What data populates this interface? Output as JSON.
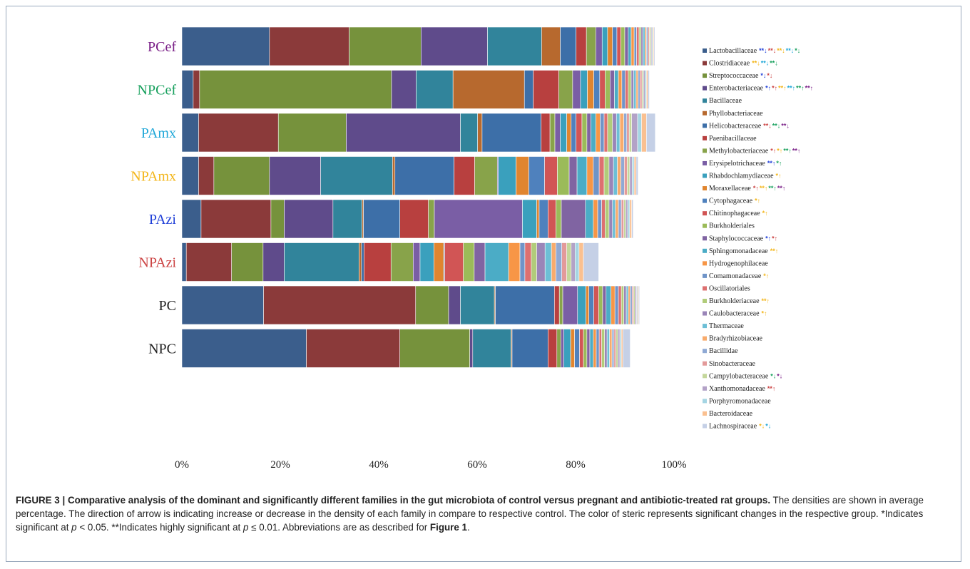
{
  "caption": {
    "part1": "FIGURE 3 | Comparative analysis of the dominant and significantly different families in the gut microbiota of control versus pregnant and antibiotic-treated rat groups.",
    "part2": " The densities are shown in average percentage. The direction of arrow is indicating increase or decrease in the density of each family in compare to respective control. The color of steric represents significant changes in the respective group. *Indicates significant at ",
    "p1": "p",
    "part3": " < 0.05. **Indicates highly significant at ",
    "p2": "p",
    "part4": " ≤ 0.01. Abbreviations are as described for ",
    "figref": "Figure 1",
    "part5": "."
  },
  "chart_data": {
    "type": "bar",
    "orientation": "horizontal",
    "stacked": true,
    "x_ticks": [
      "0%",
      "20%",
      "40%",
      "60%",
      "80%",
      "100%"
    ],
    "xlim": [
      0,
      100
    ],
    "legend_position": "right",
    "groups": [
      {
        "label": "PCef",
        "color": "#7a1f87",
        "values": [
          17.8,
          16.2,
          14.6,
          13.5,
          11.0,
          3.8,
          3.2,
          2.1,
          1.9,
          1.3,
          1.1,
          1.0,
          0.9,
          0.8,
          0.8,
          0.7,
          0.6,
          0.6,
          0.5,
          0.5,
          0.4,
          0.4,
          0.4,
          0.3,
          0.3,
          0.3,
          0.3,
          0.2,
          0.2,
          0.2,
          0.2
        ]
      },
      {
        "label": "NPCef",
        "color": "#17a05d",
        "values": [
          2.3,
          1.3,
          39.0,
          5.0,
          7.5,
          14.5,
          1.8,
          5.2,
          2.8,
          1.6,
          1.4,
          1.3,
          1.2,
          1.1,
          1.0,
          0.9,
          0.8,
          0.7,
          0.7,
          0.6,
          0.6,
          0.5,
          0.5,
          0.4,
          0.4,
          0.4,
          0.3,
          0.3,
          0.3,
          0.3,
          0.3
        ]
      },
      {
        "label": "PAmx",
        "color": "#20a7d8",
        "values": [
          3.4,
          16.2,
          13.8,
          23.2,
          3.5,
          0.9,
          12.0,
          1.8,
          1.0,
          1.1,
          1.3,
          0.9,
          1.0,
          1.2,
          1.0,
          0.8,
          1.0,
          0.9,
          0.8,
          0.7,
          1.0,
          0.8,
          0.7,
          0.8,
          0.6,
          0.5,
          0.5,
          1.2,
          0.8,
          1.0,
          1.8
        ]
      },
      {
        "label": "NPAmx",
        "color": "#f3b61b",
        "values": [
          3.4,
          3.1,
          11.3,
          10.4,
          14.6,
          0.5,
          12.0,
          4.2,
          4.6,
          0.2,
          3.6,
          2.6,
          3.2,
          2.6,
          2.4,
          1.6,
          2.0,
          1.3,
          1.2,
          1.0,
          1.0,
          0.9,
          0.8,
          0.7,
          0.7,
          0.6,
          0.5,
          0.5,
          0.4,
          0.4,
          0.4
        ]
      },
      {
        "label": "PAzi",
        "color": "#1f3fd8",
        "values": [
          3.9,
          14.2,
          2.7,
          9.9,
          5.9,
          0.3,
          7.4,
          5.8,
          1.2,
          17.9,
          2.9,
          0.5,
          1.8,
          1.6,
          1.1,
          4.9,
          1.6,
          0.9,
          0.8,
          0.7,
          0.8,
          0.7,
          0.6,
          0.6,
          0.6,
          0.5,
          0.4,
          0.4,
          0.4,
          0.4,
          0.3
        ]
      },
      {
        "label": "NPAzi",
        "color": "#cc4444",
        "values": [
          0.9,
          9.2,
          6.4,
          4.3,
          15.2,
          0.5,
          0.5,
          5.5,
          4.5,
          1.4,
          2.8,
          2.0,
          0.2,
          3.8,
          2.2,
          2.2,
          4.8,
          2.3,
          1.0,
          1.3,
          1.1,
          1.7,
          1.3,
          0.9,
          1.2,
          1.0,
          0.9,
          0.8,
          0.8,
          0.9,
          3.1
        ]
      },
      {
        "label": "PC",
        "color": "#222222",
        "values": [
          16.6,
          30.9,
          6.7,
          2.4,
          6.9,
          0.2,
          12.0,
          1.0,
          0.7,
          3.0,
          1.7,
          0.6,
          1.0,
          1.0,
          0.8,
          0.7,
          1.0,
          0.8,
          0.7,
          0.6,
          0.5,
          0.5,
          0.4,
          0.4,
          0.4,
          0.3,
          0.3,
          0.3,
          0.2,
          0.2,
          0.2
        ]
      },
      {
        "label": "NPC",
        "color": "#222222",
        "values": [
          25.3,
          19.0,
          14.2,
          0.6,
          7.8,
          0.2,
          7.3,
          1.8,
          0.8,
          0.6,
          1.4,
          0.8,
          1.0,
          0.8,
          0.7,
          0.6,
          0.7,
          0.6,
          0.6,
          0.5,
          0.6,
          0.5,
          0.5,
          0.5,
          0.4,
          0.4,
          0.4,
          0.4,
          0.3,
          0.3,
          1.5
        ]
      }
    ],
    "families": [
      {
        "name": "Lactobacillaceae",
        "color": "#3b5e8c",
        "marks": [
          {
            "t": "**↓",
            "c": "#1f3fd8"
          },
          {
            "t": "**↓",
            "c": "#cc4444"
          },
          {
            "t": "**↓",
            "c": "#f3b61b"
          },
          {
            "t": "**↓",
            "c": "#20a7d8"
          },
          {
            "t": "*↓",
            "c": "#17a05d"
          }
        ]
      },
      {
        "name": "Clostridiaceae",
        "color": "#8b3a3a",
        "marks": [
          {
            "t": "**↓",
            "c": "#f3b61b"
          },
          {
            "t": "**↓",
            "c": "#20a7d8"
          },
          {
            "t": "**↓",
            "c": "#17a05d"
          }
        ]
      },
      {
        "name": "Streptococcaceae",
        "color": "#76923c",
        "marks": [
          {
            "t": "*↓",
            "c": "#1f3fd8"
          },
          {
            "t": "*↓",
            "c": "#cc4444"
          }
        ]
      },
      {
        "name": "Enterobacteriaceae",
        "color": "#5f4b8b",
        "marks": [
          {
            "t": "*↑",
            "c": "#1f3fd8"
          },
          {
            "t": "*↑",
            "c": "#cc4444"
          },
          {
            "t": "**↑",
            "c": "#f3b61b"
          },
          {
            "t": "**↑",
            "c": "#20a7d8"
          },
          {
            "t": "**↑",
            "c": "#17a05d"
          },
          {
            "t": "**↑",
            "c": "#7a1f87"
          }
        ]
      },
      {
        "name": "Bacillaceae",
        "color": "#31849b",
        "marks": []
      },
      {
        "name": "Phyllobacteriaceae",
        "color": "#b7692e",
        "marks": []
      },
      {
        "name": "Helicobacteraceae",
        "color": "#3d6fa8",
        "marks": [
          {
            "t": "**↓",
            "c": "#cc4444"
          },
          {
            "t": "**↓",
            "c": "#17a05d"
          },
          {
            "t": "**↓",
            "c": "#7a1f87"
          }
        ]
      },
      {
        "name": "Paenibacillaceae",
        "color": "#b8403f",
        "marks": []
      },
      {
        "name": "Methylobacteriaceae",
        "color": "#88a34a",
        "marks": [
          {
            "t": "*↑",
            "c": "#cc4444"
          },
          {
            "t": "*↑",
            "c": "#f3b61b"
          },
          {
            "t": "**↑",
            "c": "#17a05d"
          },
          {
            "t": "**↑",
            "c": "#7a1f87"
          }
        ]
      },
      {
        "name": "Erysipelotrichaceae",
        "color": "#7a5ea5",
        "marks": [
          {
            "t": "**↑",
            "c": "#1f3fd8"
          },
          {
            "t": "*↑",
            "c": "#17a05d"
          }
        ]
      },
      {
        "name": "Rhabdochlamydiaceae",
        "color": "#3aa0bd",
        "marks": [
          {
            "t": "*↑",
            "c": "#f3b61b"
          }
        ]
      },
      {
        "name": "Moraxellaceae",
        "color": "#e0852f",
        "marks": [
          {
            "t": "*↑",
            "c": "#cc4444"
          },
          {
            "t": "**↑",
            "c": "#f3b61b"
          },
          {
            "t": "**↑",
            "c": "#17a05d"
          },
          {
            "t": "**↑",
            "c": "#7a1f87"
          }
        ]
      },
      {
        "name": "Cytophagaceae",
        "color": "#4f81bd",
        "marks": [
          {
            "t": "*↑",
            "c": "#f3b61b"
          }
        ]
      },
      {
        "name": "Chitinophagaceae",
        "color": "#d15555",
        "marks": [
          {
            "t": "*↑",
            "c": "#f3b61b"
          }
        ]
      },
      {
        "name": "Burkholderiales",
        "color": "#9bbb59",
        "marks": []
      },
      {
        "name": "Staphylococcaceae",
        "color": "#8064a2",
        "marks": [
          {
            "t": "*↑",
            "c": "#1f3fd8"
          },
          {
            "t": "*↑",
            "c": "#cc4444"
          }
        ]
      },
      {
        "name": "Sphingomonadaceae",
        "color": "#4bacc6",
        "marks": [
          {
            "t": "**↑",
            "c": "#f3b61b"
          }
        ]
      },
      {
        "name": "Hydrogenophilaceae",
        "color": "#f79646",
        "marks": []
      },
      {
        "name": "Comamonadaceae",
        "color": "#6f94c8",
        "marks": [
          {
            "t": "*↑",
            "c": "#f3b61b"
          }
        ]
      },
      {
        "name": "Oscillatoriales",
        "color": "#dd7070",
        "marks": []
      },
      {
        "name": "Burkholderiaceae",
        "color": "#b1cc7a",
        "marks": [
          {
            "t": "**↑",
            "c": "#f3b61b"
          }
        ]
      },
      {
        "name": "Caulobacteraceae",
        "color": "#9a85b8",
        "marks": [
          {
            "t": "*↑",
            "c": "#f3b61b"
          }
        ]
      },
      {
        "name": "Thermaceae",
        "color": "#6dbfd6",
        "marks": []
      },
      {
        "name": "Bradyrhizobiaceae",
        "color": "#f8ab6c",
        "marks": []
      },
      {
        "name": "Bacillidae",
        "color": "#8fa9d4",
        "marks": []
      },
      {
        "name": "Sinobacteraceae",
        "color": "#e39a9a",
        "marks": []
      },
      {
        "name": "Campylobacteraceae",
        "color": "#c4d79b",
        "marks": [
          {
            "t": "*↓",
            "c": "#17a05d"
          },
          {
            "t": "*↓",
            "c": "#7a1f87"
          }
        ]
      },
      {
        "name": "Xanthomonadaceae",
        "color": "#b3a2c7",
        "marks": [
          {
            "t": "**↑",
            "c": "#cc4444"
          }
        ]
      },
      {
        "name": "Porphyromonadaceae",
        "color": "#a5d5e3",
        "marks": []
      },
      {
        "name": "Bacteroidaceae",
        "color": "#fac090",
        "marks": []
      },
      {
        "name": "Lachnospiraceae",
        "color": "#c5d0e6",
        "marks": [
          {
            "t": "*↓",
            "c": "#f3b61b"
          },
          {
            "t": "*↓",
            "c": "#20a7d8"
          }
        ]
      }
    ]
  }
}
